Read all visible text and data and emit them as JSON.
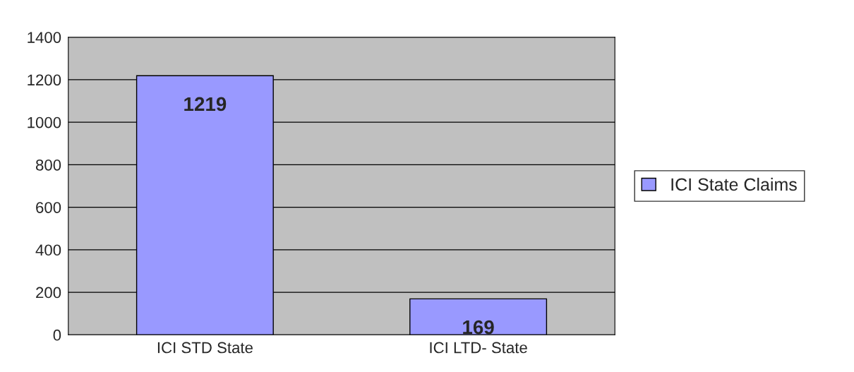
{
  "chart_data": {
    "type": "bar",
    "categories": [
      "ICI STD State",
      "ICI LTD- State"
    ],
    "series": [
      {
        "name": "ICI State Claims",
        "color": "#9999ff",
        "values": [
          1219,
          169
        ]
      }
    ],
    "data_labels": true,
    "ylim": [
      0,
      1400
    ],
    "yticks": [
      0,
      200,
      400,
      600,
      800,
      1000,
      1200,
      1400
    ],
    "grid": "y",
    "legend": "right"
  }
}
